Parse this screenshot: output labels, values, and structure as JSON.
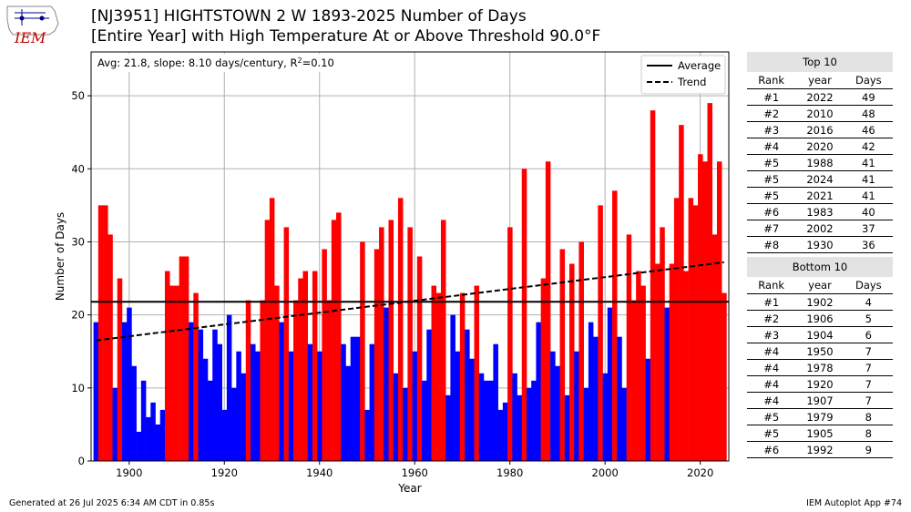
{
  "header": {
    "title_line1": "[NJ3951] HIGHTSTOWN 2 W 1893-2025 Number of Days",
    "title_line2": "[Entire Year] with High Temperature At or Above Threshold 90.0°F",
    "logo_text": "IEM"
  },
  "footer": {
    "generated": "Generated at 26 Jul 2025 6:34 AM CDT in 0.85s",
    "app": "IEM Autoplot App #74"
  },
  "colors": {
    "above": "#ff0000",
    "below": "#0000ff",
    "lines": "#000000"
  },
  "chart_data": {
    "type": "bar",
    "title": "[NJ3951] HIGHTSTOWN 2 W 1893-2025 Number of Days",
    "subtitle": "[Entire Year] with High Temperature At or Above Threshold 90.0°F",
    "xlabel": "Year",
    "ylabel": "Number of Days",
    "xlim": [
      1892,
      2026
    ],
    "ylim": [
      0,
      56
    ],
    "xticks": [
      1900,
      1920,
      1940,
      1960,
      1980,
      2000,
      2020
    ],
    "yticks": [
      0,
      10,
      20,
      30,
      40,
      50
    ],
    "grid": true,
    "legend_position": "top-right",
    "legend": [
      "Average",
      "Trend"
    ],
    "annotation": "Avg: 21.8, slope: 8.10 days/century, R",
    "annotation_r2": "=0.10",
    "average": 21.8,
    "trend_start": [
      1893,
      16.5
    ],
    "trend_end": [
      2025,
      27.2
    ],
    "x": [
      1893,
      1894,
      1895,
      1896,
      1897,
      1898,
      1899,
      1900,
      1901,
      1902,
      1903,
      1904,
      1905,
      1906,
      1907,
      1908,
      1909,
      1910,
      1911,
      1912,
      1913,
      1914,
      1915,
      1916,
      1917,
      1918,
      1919,
      1920,
      1921,
      1922,
      1923,
      1924,
      1925,
      1926,
      1927,
      1928,
      1929,
      1930,
      1931,
      1932,
      1933,
      1934,
      1935,
      1936,
      1937,
      1938,
      1939,
      1940,
      1941,
      1942,
      1943,
      1944,
      1945,
      1946,
      1947,
      1948,
      1949,
      1950,
      1951,
      1952,
      1953,
      1954,
      1955,
      1956,
      1957,
      1958,
      1959,
      1960,
      1961,
      1962,
      1963,
      1964,
      1965,
      1966,
      1967,
      1968,
      1969,
      1970,
      1971,
      1972,
      1973,
      1974,
      1975,
      1976,
      1977,
      1978,
      1979,
      1980,
      1981,
      1982,
      1983,
      1984,
      1985,
      1986,
      1987,
      1988,
      1989,
      1990,
      1991,
      1992,
      1993,
      1994,
      1995,
      1996,
      1997,
      1998,
      1999,
      2000,
      2001,
      2002,
      2003,
      2004,
      2005,
      2006,
      2007,
      2008,
      2009,
      2010,
      2011,
      2012,
      2013,
      2014,
      2015,
      2016,
      2017,
      2018,
      2019,
      2020,
      2021,
      2022,
      2023,
      2024,
      2025
    ],
    "values": [
      19,
      35,
      35,
      31,
      10,
      25,
      19,
      21,
      13,
      4,
      11,
      6,
      8,
      5,
      7,
      26,
      24,
      24,
      28,
      28,
      19,
      23,
      18,
      14,
      11,
      18,
      16,
      7,
      20,
      10,
      15,
      12,
      22,
      16,
      15,
      22,
      33,
      36,
      24,
      19,
      32,
      15,
      22,
      25,
      26,
      16,
      26,
      15,
      29,
      22,
      33,
      34,
      16,
      13,
      17,
      17,
      30,
      7,
      16,
      29,
      32,
      21,
      33,
      12,
      36,
      10,
      32,
      15,
      28,
      11,
      18,
      24,
      23,
      33,
      9,
      20,
      15,
      23,
      18,
      14,
      24,
      12,
      11,
      11,
      16,
      7,
      8,
      32,
      12,
      9,
      40,
      10,
      11,
      19,
      25,
      41,
      15,
      13,
      29,
      9,
      27,
      15,
      30,
      10,
      19,
      17,
      35,
      12,
      21,
      37,
      17,
      10,
      31,
      22,
      26,
      24,
      14,
      48,
      27,
      32,
      21,
      27,
      36,
      46,
      26,
      36,
      35,
      42,
      41,
      49,
      31,
      41,
      23
    ]
  },
  "top_table": {
    "caption": "Top 10",
    "headers": [
      "Rank",
      "year",
      "Days"
    ],
    "rows": [
      [
        "#1",
        "2022",
        "49"
      ],
      [
        "#2",
        "2010",
        "48"
      ],
      [
        "#3",
        "2016",
        "46"
      ],
      [
        "#4",
        "2020",
        "42"
      ],
      [
        "#5",
        "1988",
        "41"
      ],
      [
        "#5",
        "2024",
        "41"
      ],
      [
        "#5",
        "2021",
        "41"
      ],
      [
        "#6",
        "1983",
        "40"
      ],
      [
        "#7",
        "2002",
        "37"
      ],
      [
        "#8",
        "1930",
        "36"
      ]
    ]
  },
  "bottom_table": {
    "caption": "Bottom 10",
    "headers": [
      "Rank",
      "year",
      "Days"
    ],
    "rows": [
      [
        "#1",
        "1902",
        "4"
      ],
      [
        "#2",
        "1906",
        "5"
      ],
      [
        "#3",
        "1904",
        "6"
      ],
      [
        "#4",
        "1950",
        "7"
      ],
      [
        "#4",
        "1978",
        "7"
      ],
      [
        "#4",
        "1920",
        "7"
      ],
      [
        "#4",
        "1907",
        "7"
      ],
      [
        "#5",
        "1979",
        "8"
      ],
      [
        "#5",
        "1905",
        "8"
      ],
      [
        "#6",
        "1992",
        "9"
      ]
    ]
  }
}
